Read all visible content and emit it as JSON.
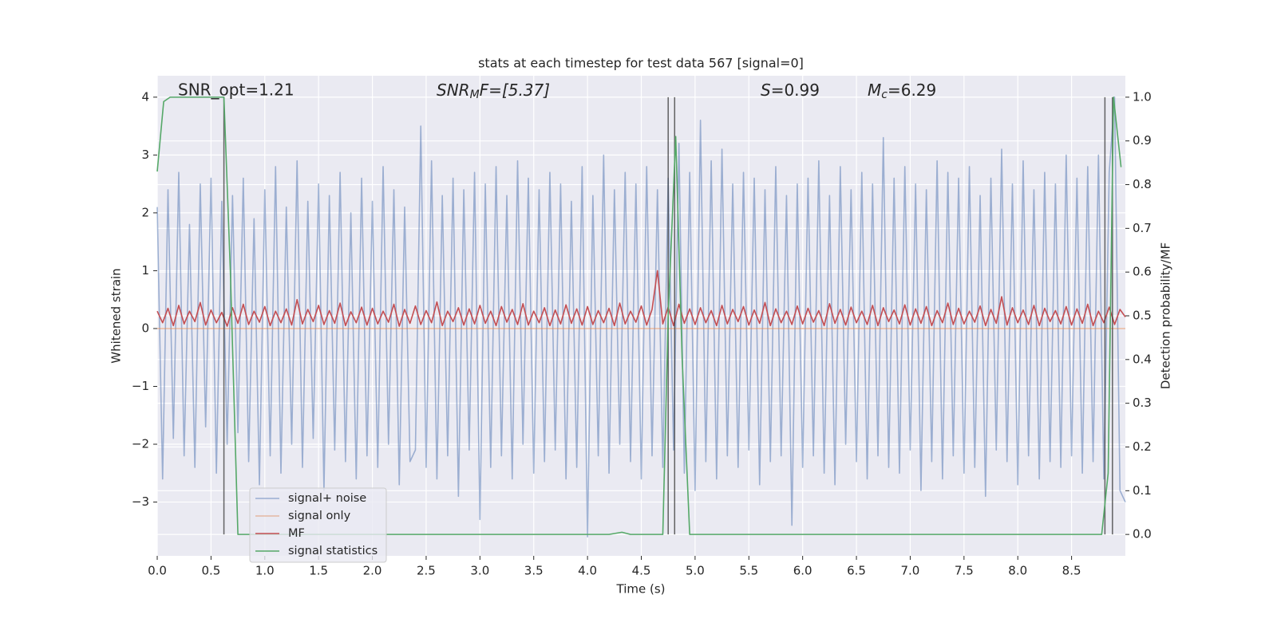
{
  "chart_data": {
    "type": "line",
    "title": "stats at each timestep for test data 567 [signal=0]",
    "xlabel": "Time (s)",
    "ylabel": "Whitened strain",
    "y2label": "Detection probability/MF",
    "annotations": [
      {
        "parts": [
          "SNR_opt=1.21"
        ]
      },
      {
        "parts": [
          "SNR",
          "M",
          "F=[5.37]"
        ]
      },
      {
        "parts": [
          "S",
          "=0.99"
        ]
      },
      {
        "parts": [
          "M",
          "c",
          "=6.29"
        ]
      }
    ],
    "xlim": [
      0,
      9.0
    ],
    "ylim": [
      -3.93,
      4.37
    ],
    "y2lim": [
      -0.049,
      1.049
    ],
    "xticks": [
      {
        "value": 0,
        "label": "0.0"
      },
      0.5,
      {
        "value": 1,
        "label": "1.0"
      },
      1.5,
      {
        "value": 2,
        "label": "2.0"
      },
      2.5,
      {
        "value": 3,
        "label": "3.0"
      },
      3.5,
      {
        "value": 4,
        "label": "4.0"
      },
      4.5,
      {
        "value": 5,
        "label": "5.0"
      },
      5.5,
      {
        "value": 6,
        "label": "6.0"
      },
      6.5,
      {
        "value": 7,
        "label": "7.0"
      },
      7.5,
      {
        "value": 8,
        "label": "8.0"
      },
      8.5
    ],
    "yticks": [
      {
        "value": -3,
        "label": "−3"
      },
      {
        "value": -2,
        "label": "−2"
      },
      {
        "value": -1,
        "label": "−1"
      },
      0,
      1,
      2,
      3,
      4
    ],
    "y2ticks": [
      {
        "value": 0,
        "label": "0.0"
      },
      0.1,
      0.2,
      0.3,
      0.4,
      0.5,
      0.6,
      0.7,
      0.8,
      0.9,
      {
        "value": 1,
        "label": "1.0"
      }
    ],
    "grid": true,
    "legend": "lower left",
    "series": [
      {
        "name": "signal+ noise",
        "color": "#4c72b0",
        "x": [
          0,
          0.05,
          0.1,
          0.15,
          0.2,
          0.25,
          0.3,
          0.35,
          0.4,
          0.45,
          0.5,
          0.55,
          0.6,
          0.65,
          0.7,
          0.75,
          0.8,
          0.85,
          0.9,
          0.95,
          1,
          1.05,
          1.1,
          1.15,
          1.2,
          1.25,
          1.3,
          1.35,
          1.4,
          1.45,
          1.5,
          1.55,
          1.6,
          1.65,
          1.7,
          1.75,
          1.8,
          1.85,
          1.9,
          1.95,
          2,
          2.05,
          2.1,
          2.15,
          2.2,
          2.25,
          2.3,
          2.35,
          2.4,
          2.45,
          2.5,
          2.55,
          2.6,
          2.65,
          2.7,
          2.75,
          2.8,
          2.85,
          2.9,
          2.95,
          3,
          3.05,
          3.1,
          3.15,
          3.2,
          3.25,
          3.3,
          3.35,
          3.4,
          3.45,
          3.5,
          3.55,
          3.6,
          3.65,
          3.7,
          3.75,
          3.8,
          3.85,
          3.9,
          3.95,
          4,
          4.05,
          4.1,
          4.15,
          4.2,
          4.25,
          4.3,
          4.35,
          4.4,
          4.45,
          4.5,
          4.55,
          4.6,
          4.65,
          4.7,
          4.75,
          4.8,
          4.85,
          4.9,
          4.95,
          5,
          5.05,
          5.1,
          5.15,
          5.2,
          5.25,
          5.3,
          5.35,
          5.4,
          5.45,
          5.5,
          5.55,
          5.6,
          5.65,
          5.7,
          5.75,
          5.8,
          5.85,
          5.9,
          5.95,
          6,
          6.05,
          6.1,
          6.15,
          6.2,
          6.25,
          6.3,
          6.35,
          6.4,
          6.45,
          6.5,
          6.55,
          6.6,
          6.65,
          6.7,
          6.75,
          6.8,
          6.85,
          6.9,
          6.95,
          7,
          7.05,
          7.1,
          7.15,
          7.2,
          7.25,
          7.3,
          7.35,
          7.4,
          7.45,
          7.5,
          7.55,
          7.6,
          7.65,
          7.7,
          7.75,
          7.8,
          7.85,
          7.9,
          7.95,
          8,
          8.05,
          8.1,
          8.15,
          8.2,
          8.25,
          8.3,
          8.35,
          8.4,
          8.45,
          8.5,
          8.55,
          8.6,
          8.65,
          8.7,
          8.75,
          8.8,
          8.85,
          8.9,
          8.95,
          9.0
        ],
        "values": [
          2.1,
          -2.6,
          2.4,
          -1.9,
          2.7,
          -2.2,
          1.8,
          -2.4,
          2.5,
          -1.7,
          2.6,
          -2.5,
          2.2,
          -2.0,
          2.3,
          -1.8,
          2.6,
          -2.3,
          1.9,
          -2.7,
          2.4,
          -2.2,
          2.8,
          -2.5,
          2.1,
          -2.0,
          2.9,
          -2.4,
          2.2,
          -1.9,
          2.5,
          -2.8,
          2.3,
          -2.1,
          2.7,
          -2.3,
          2.0,
          -2.6,
          2.6,
          -2.2,
          2.2,
          -2.4,
          2.8,
          -2.0,
          2.4,
          -2.7,
          2.1,
          -2.3,
          -2.1,
          3.5,
          -2.4,
          2.9,
          -2.6,
          2.3,
          -2.2,
          2.6,
          -2.9,
          2.4,
          -2.1,
          2.7,
          -3.3,
          2.5,
          -2.4,
          2.8,
          -2.2,
          2.3,
          -2.6,
          2.9,
          -2.0,
          2.6,
          -2.5,
          2.4,
          -2.3,
          2.7,
          -2.1,
          2.5,
          -2.6,
          2.2,
          -2.4,
          2.8,
          -3.6,
          2.3,
          -2.2,
          3.0,
          -2.5,
          2.4,
          -2.0,
          2.7,
          -2.3,
          2.5,
          -2.6,
          2.8,
          -2.2,
          2.4,
          -2.4,
          2.6,
          -2.1,
          3.2,
          -2.5,
          2.7,
          -2.8,
          3.6,
          -2.3,
          2.9,
          -2.6,
          3.1,
          -2.2,
          2.5,
          -2.4,
          2.7,
          -2.1,
          2.6,
          -2.7,
          2.4,
          -2.3,
          2.8,
          -2.2,
          2.3,
          -3.4,
          2.5,
          -2.4,
          2.6,
          -2.2,
          2.9,
          -2.5,
          2.3,
          -2.7,
          2.8,
          -2.0,
          2.4,
          -2.3,
          2.7,
          -2.6,
          2.5,
          -2.2,
          3.3,
          -2.4,
          2.6,
          -2.5,
          2.8,
          -2.1,
          2.5,
          -2.8,
          2.4,
          -2.3,
          2.9,
          -2.6,
          2.7,
          -2.2,
          2.6,
          -2.5,
          2.8,
          -2.4,
          2.3,
          -2.9,
          2.6,
          -2.1,
          3.1,
          -2.3,
          2.5,
          -2.7,
          2.9,
          -2.2,
          2.4,
          -2.6,
          2.7,
          -2.3,
          2.5,
          -2.4,
          3.0,
          -2.2,
          2.6,
          -2.5,
          2.8,
          -2.3,
          3.0,
          -2.6,
          2.7,
          4.0,
          -2.8,
          -3.0
        ]
      },
      {
        "name": "signal only",
        "color": "#dd8452",
        "x": [
          0,
          9.0
        ],
        "values": [
          0,
          0
        ]
      },
      {
        "name": "MF",
        "color": "#c44e52",
        "x": [
          0,
          0.05,
          0.1,
          0.15,
          0.2,
          0.25,
          0.3,
          0.35,
          0.4,
          0.45,
          0.5,
          0.55,
          0.6,
          0.65,
          0.7,
          0.75,
          0.8,
          0.85,
          0.9,
          0.95,
          1,
          1.05,
          1.1,
          1.15,
          1.2,
          1.25,
          1.3,
          1.35,
          1.4,
          1.45,
          1.5,
          1.55,
          1.6,
          1.65,
          1.7,
          1.75,
          1.8,
          1.85,
          1.9,
          1.95,
          2,
          2.05,
          2.1,
          2.15,
          2.2,
          2.25,
          2.3,
          2.35,
          2.4,
          2.45,
          2.5,
          2.55,
          2.6,
          2.65,
          2.7,
          2.75,
          2.8,
          2.85,
          2.9,
          2.95,
          3,
          3.05,
          3.1,
          3.15,
          3.2,
          3.25,
          3.3,
          3.35,
          3.4,
          3.45,
          3.5,
          3.55,
          3.6,
          3.65,
          3.7,
          3.75,
          3.8,
          3.85,
          3.9,
          3.95,
          4,
          4.05,
          4.1,
          4.15,
          4.2,
          4.25,
          4.3,
          4.35,
          4.4,
          4.45,
          4.5,
          4.55,
          4.6,
          4.65,
          4.7,
          4.75,
          4.8,
          4.85,
          4.9,
          4.95,
          5,
          5.05,
          5.1,
          5.15,
          5.2,
          5.25,
          5.3,
          5.35,
          5.4,
          5.45,
          5.5,
          5.55,
          5.6,
          5.65,
          5.7,
          5.75,
          5.8,
          5.85,
          5.9,
          5.95,
          6,
          6.05,
          6.1,
          6.15,
          6.2,
          6.25,
          6.3,
          6.35,
          6.4,
          6.45,
          6.5,
          6.55,
          6.6,
          6.65,
          6.7,
          6.75,
          6.8,
          6.85,
          6.9,
          6.95,
          7,
          7.05,
          7.1,
          7.15,
          7.2,
          7.25,
          7.3,
          7.35,
          7.4,
          7.45,
          7.5,
          7.55,
          7.6,
          7.65,
          7.7,
          7.75,
          7.8,
          7.85,
          7.9,
          7.95,
          8,
          8.05,
          8.1,
          8.15,
          8.2,
          8.25,
          8.3,
          8.35,
          8.4,
          8.45,
          8.5,
          8.55,
          8.6,
          8.65,
          8.7,
          8.75,
          8.8,
          8.85,
          8.9,
          8.95,
          9.0
        ],
        "values": [
          0.3,
          0.1,
          0.35,
          0.05,
          0.4,
          0.08,
          0.3,
          0.12,
          0.45,
          0.06,
          0.32,
          0.1,
          0.28,
          0.04,
          0.36,
          0.09,
          0.42,
          0.07,
          0.3,
          0.11,
          0.38,
          0.05,
          0.3,
          0.1,
          0.34,
          0.06,
          0.5,
          0.08,
          0.33,
          0.12,
          0.4,
          0.07,
          0.31,
          0.09,
          0.44,
          0.05,
          0.29,
          0.1,
          0.37,
          0.06,
          0.35,
          0.08,
          0.3,
          0.11,
          0.42,
          0.04,
          0.33,
          0.09,
          0.39,
          0.07,
          0.31,
          0.1,
          0.46,
          0.05,
          0.3,
          0.12,
          0.36,
          0.06,
          0.34,
          0.08,
          0.4,
          0.09,
          0.3,
          0.05,
          0.38,
          0.11,
          0.33,
          0.07,
          0.43,
          0.06,
          0.3,
          0.1,
          0.36,
          0.05,
          0.32,
          0.08,
          0.41,
          0.09,
          0.34,
          0.06,
          0.38,
          0.07,
          0.31,
          0.1,
          0.35,
          0.05,
          0.44,
          0.08,
          0.3,
          0.11,
          0.39,
          0.06,
          0.33,
          1.0,
          0.08,
          0.37,
          0.05,
          0.42,
          0.09,
          0.34,
          0.07,
          0.36,
          0.1,
          0.31,
          0.05,
          0.4,
          0.08,
          0.33,
          0.12,
          0.38,
          0.06,
          0.32,
          0.09,
          0.45,
          0.05,
          0.34,
          0.1,
          0.3,
          0.07,
          0.39,
          0.08,
          0.35,
          0.11,
          0.31,
          0.05,
          0.43,
          0.09,
          0.33,
          0.06,
          0.37,
          0.1,
          0.3,
          0.07,
          0.4,
          0.05,
          0.36,
          0.12,
          0.32,
          0.08,
          0.41,
          0.06,
          0.34,
          0.09,
          0.38,
          0.05,
          0.31,
          0.1,
          0.44,
          0.07,
          0.35,
          0.08,
          0.3,
          0.11,
          0.39,
          0.05,
          0.33,
          0.09,
          0.55,
          0.06,
          0.36,
          0.1,
          0.32,
          0.07,
          0.4,
          0.05,
          0.35,
          0.12,
          0.31,
          0.08,
          0.38,
          0.06,
          0.34,
          0.09,
          0.42,
          0.05,
          0.3,
          0.1,
          0.37,
          0.07,
          0.33,
          0.2
        ]
      },
      {
        "name": "signal statistics",
        "color": "#55a868",
        "axis": "y2",
        "x": [
          0,
          0.06,
          0.12,
          0.62,
          0.68,
          0.75,
          4.2,
          4.32,
          4.4,
          4.7,
          4.75,
          4.82,
          4.88,
          4.95,
          8.78,
          8.84,
          8.89,
          8.96
        ],
        "values": [
          0.83,
          0.99,
          1.0,
          1.0,
          0.6,
          0.0,
          0.0,
          0.005,
          0.0,
          0.0,
          0.5,
          0.91,
          0.4,
          0.0,
          0.0,
          0.14,
          1.0,
          0.84
        ]
      }
    ],
    "vlines": {
      "x": [
        0.62,
        4.75,
        4.81,
        8.81,
        8.88
      ],
      "ymin": 0,
      "ymax": 1,
      "color": "#333333"
    }
  }
}
